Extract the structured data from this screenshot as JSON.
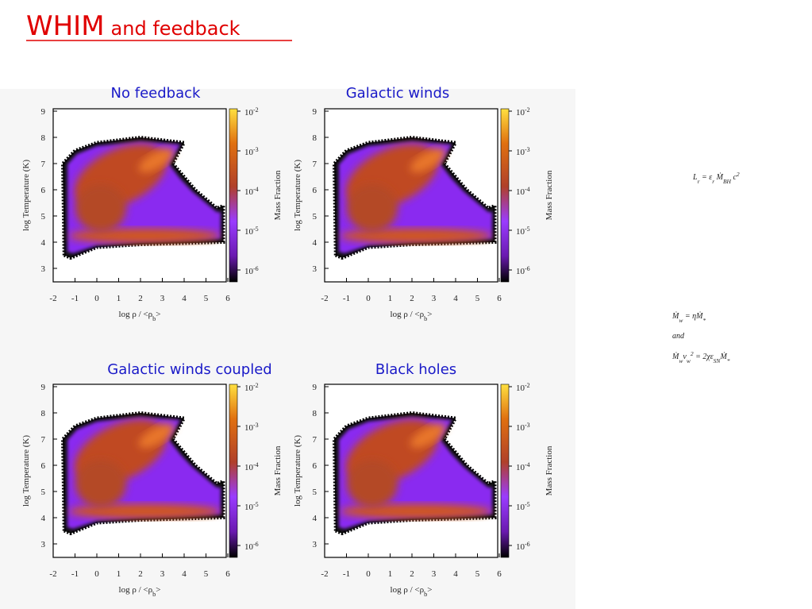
{
  "header": {
    "title_main": "WHIM",
    "title_rest": "and feedback"
  },
  "panels": [
    {
      "title": "No feedback"
    },
    {
      "title": "Galactic winds"
    },
    {
      "title": "Galactic winds coupled"
    },
    {
      "title": "Black holes"
    }
  ],
  "axes": {
    "x_label": [
      {
        "text": "log ρ / <ρ",
        "style": "n"
      },
      {
        "text": "b",
        "style": "sub"
      },
      {
        "text": ">",
        "style": "n"
      }
    ],
    "y_label": "log Temperature (K)",
    "colorbar_label": "Mass Fraction",
    "x_ticks": [
      "-2",
      "-1",
      "0",
      "1",
      "2",
      "3",
      "4",
      "5",
      "6"
    ],
    "y_ticks": [
      "9",
      "8",
      "7",
      "6",
      "5",
      "4",
      "3"
    ],
    "colorbar_ticks": [
      {
        "base": "10",
        "exponent": "-2"
      },
      {
        "base": "10",
        "exponent": "-3"
      },
      {
        "base": "10",
        "exponent": "-4"
      },
      {
        "base": "10",
        "exponent": "-5"
      },
      {
        "base": "10",
        "exponent": "-6"
      }
    ]
  },
  "equations": [
    [
      {
        "text": "L",
        "style": "n"
      },
      {
        "text": "r",
        "style": "sub"
      },
      {
        "text": " = ε",
        "style": "n"
      },
      {
        "text": "r",
        "style": "sub"
      },
      {
        "text": " Ṁ",
        "style": "n"
      },
      {
        "text": "BH",
        "style": "sub"
      },
      {
        "text": " c",
        "style": "n"
      },
      {
        "text": "2",
        "style": "sup"
      }
    ],
    [
      {
        "text": "Ṁ",
        "style": "n"
      },
      {
        "text": "w",
        "style": "sub"
      },
      {
        "text": " = ηṀ",
        "style": "n"
      },
      {
        "text": "*",
        "style": "sub"
      }
    ],
    [
      {
        "text": "and",
        "style": "n"
      }
    ],
    [
      {
        "text": "Ṁ",
        "style": "n"
      },
      {
        "text": "w",
        "style": "sub"
      },
      {
        "text": "v",
        "style": "n"
      },
      {
        "text": "w",
        "style": "sub"
      },
      {
        "text": "2",
        "style": "sup"
      },
      {
        "text": " = 2χε",
        "style": "n"
      },
      {
        "text": "SN",
        "style": "sub"
      },
      {
        "text": "Ṁ",
        "style": "n"
      },
      {
        "text": "*",
        "style": "sub"
      }
    ]
  ]
}
